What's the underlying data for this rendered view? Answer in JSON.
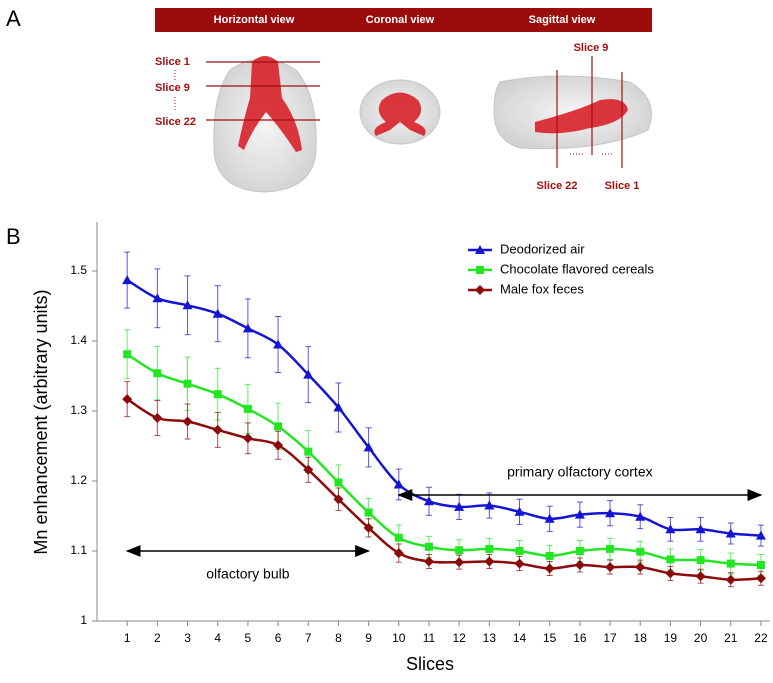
{
  "panel_labels": [
    "A",
    "B"
  ],
  "panel_a": {
    "views": [
      "Horizontal view",
      "Coronal view",
      "Sagittal view"
    ],
    "horizontal_slices": [
      "Slice 1",
      "Slice 9",
      "Slice 22"
    ],
    "sagittal_slices": [
      "Slice 9",
      "Slice 22",
      "Slice 1"
    ]
  },
  "chart_data": {
    "type": "line",
    "x_label": "Slices",
    "y_label": "Mn enhancement (arbitrary units)",
    "x": [
      1,
      2,
      3,
      4,
      5,
      6,
      7,
      8,
      9,
      10,
      11,
      12,
      13,
      14,
      15,
      16,
      17,
      18,
      19,
      20,
      21,
      22
    ],
    "xlim": [
      0,
      22.3
    ],
    "xticks": [
      1,
      2,
      3,
      4,
      5,
      6,
      7,
      8,
      9,
      10,
      11,
      12,
      13,
      14,
      15,
      16,
      17,
      18,
      19,
      20,
      21,
      22
    ],
    "ylim": [
      1,
      1.57
    ],
    "yticks": [
      1,
      1.1,
      1.2,
      1.3,
      1.4,
      1.5
    ],
    "legend": "top-right",
    "series": [
      {
        "name": "Deodorized air",
        "color": "#1414d2",
        "marker": "triangle",
        "values": [
          1.487,
          1.461,
          1.451,
          1.439,
          1.418,
          1.395,
          1.352,
          1.305,
          1.248,
          1.195,
          1.171,
          1.163,
          1.165,
          1.156,
          1.146,
          1.152,
          1.154,
          1.149,
          1.131,
          1.131,
          1.125,
          1.122
        ],
        "errors": [
          0.04,
          0.042,
          0.042,
          0.04,
          0.042,
          0.04,
          0.04,
          0.035,
          0.028,
          0.022,
          0.02,
          0.018,
          0.018,
          0.018,
          0.018,
          0.018,
          0.018,
          0.017,
          0.017,
          0.017,
          0.015,
          0.015
        ]
      },
      {
        "name": "Chocolate flavored cereals",
        "color": "#22e622",
        "marker": "square",
        "values": [
          1.381,
          1.354,
          1.339,
          1.324,
          1.303,
          1.278,
          1.242,
          1.198,
          1.155,
          1.119,
          1.106,
          1.101,
          1.103,
          1.1,
          1.093,
          1.1,
          1.103,
          1.099,
          1.088,
          1.087,
          1.082,
          1.08
        ],
        "errors": [
          0.035,
          0.038,
          0.038,
          0.037,
          0.035,
          0.033,
          0.03,
          0.025,
          0.02,
          0.018,
          0.015,
          0.015,
          0.015,
          0.015,
          0.015,
          0.015,
          0.015,
          0.015,
          0.015,
          0.015,
          0.015,
          0.015
        ]
      },
      {
        "name": "Male fox feces",
        "color": "#8b0a0a",
        "marker": "diamond",
        "values": [
          1.317,
          1.29,
          1.285,
          1.273,
          1.261,
          1.251,
          1.216,
          1.174,
          1.133,
          1.097,
          1.085,
          1.084,
          1.085,
          1.082,
          1.075,
          1.08,
          1.077,
          1.077,
          1.068,
          1.064,
          1.059,
          1.061
        ],
        "errors": [
          0.025,
          0.025,
          0.025,
          0.025,
          0.022,
          0.02,
          0.018,
          0.016,
          0.013,
          0.013,
          0.01,
          0.01,
          0.01,
          0.01,
          0.01,
          0.01,
          0.01,
          0.01,
          0.01,
          0.01,
          0.01,
          0.01
        ]
      }
    ],
    "annotations": [
      {
        "text": "primary olfactory cortex",
        "x": [
          10,
          22
        ],
        "y": 1.18
      },
      {
        "text": "olfactory bulb",
        "x": [
          1,
          9
        ],
        "y": 1.1
      }
    ]
  }
}
